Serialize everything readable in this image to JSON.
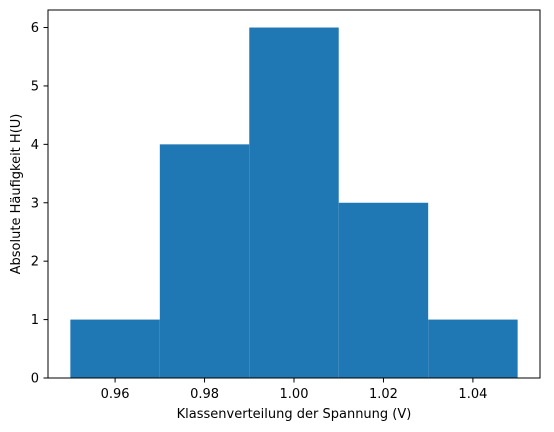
{
  "chart_data": {
    "type": "bar",
    "subtype": "histogram",
    "title": "",
    "xlabel": "Klassenverteilung der Spannung (V)",
    "ylabel": "Absolute Häufigkeit H(U)",
    "bins": [
      {
        "x0": 0.95,
        "x1": 0.97,
        "value": 1
      },
      {
        "x0": 0.97,
        "x1": 0.99,
        "value": 4
      },
      {
        "x0": 0.99,
        "x1": 1.01,
        "value": 6
      },
      {
        "x0": 1.01,
        "x1": 1.03,
        "value": 3
      },
      {
        "x0": 1.03,
        "x1": 1.05,
        "value": 1
      }
    ],
    "xlim": [
      0.945,
      1.055
    ],
    "ylim": [
      0,
      6.3
    ],
    "xticks": [
      0.96,
      0.98,
      1.0,
      1.02,
      1.04
    ],
    "xtick_labels": [
      "0.96",
      "0.98",
      "1.00",
      "1.02",
      "1.04"
    ],
    "yticks": [
      0,
      1,
      2,
      3,
      4,
      5,
      6
    ],
    "ytick_labels": [
      "0",
      "1",
      "2",
      "3",
      "4",
      "5",
      "6"
    ],
    "bar_color": "#1f77b4",
    "grid": false,
    "legend": "none"
  }
}
